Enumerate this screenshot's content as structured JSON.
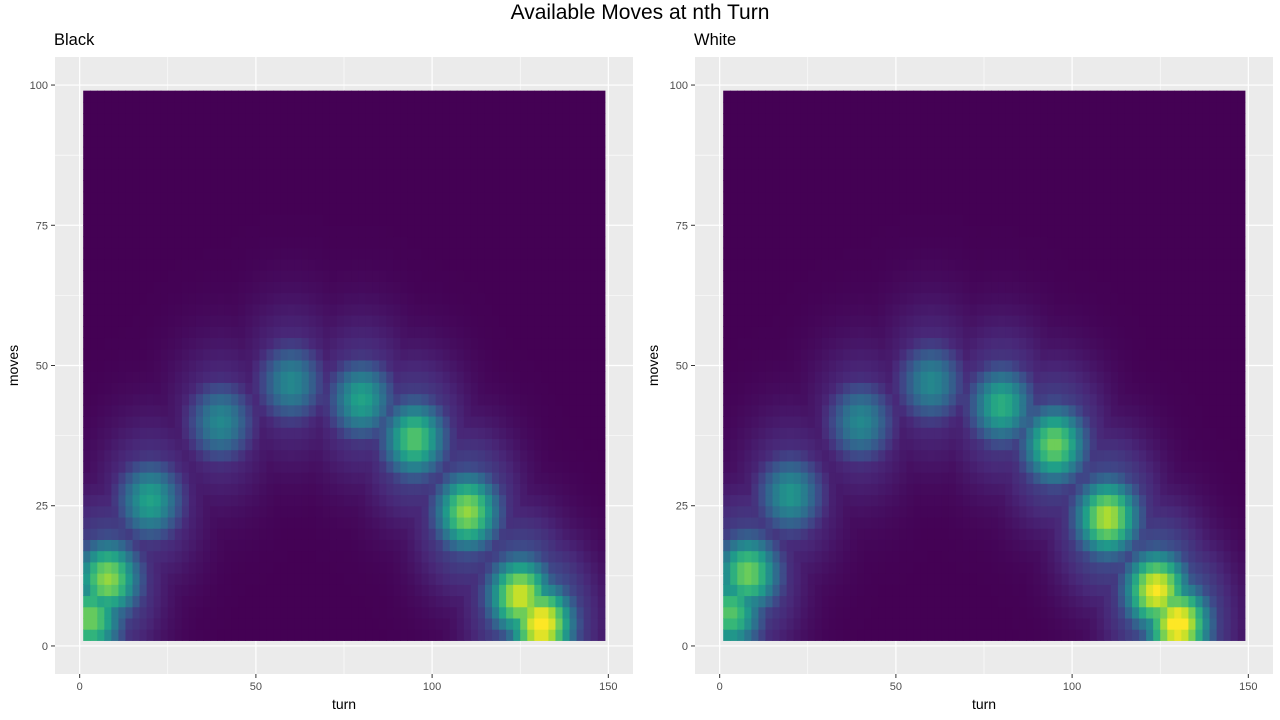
{
  "figure": {
    "title": "Available Moves at nth Turn"
  },
  "chart_data": [
    {
      "type": "heatmap",
      "title": "Black",
      "xlabel": "turn",
      "ylabel": "moves",
      "xlim": [
        -7,
        157
      ],
      "ylim": [
        -5,
        105
      ],
      "x_ticks": [
        0,
        50,
        100,
        150
      ],
      "y_ticks": [
        0,
        25,
        50,
        75,
        100
      ],
      "x_tick_labels": [
        "0",
        "50",
        "100",
        "150"
      ],
      "y_tick_labels": [
        "0",
        "25",
        "50",
        "75",
        "100"
      ],
      "x_range": [
        1,
        149
      ],
      "y_range": [
        1,
        99
      ],
      "grid": true,
      "colormap": "viridis",
      "density_peaks": [
        {
          "turn": 3,
          "moves": 5,
          "level": 0.75
        },
        {
          "turn": 8,
          "moves": 12,
          "level": 0.8
        },
        {
          "turn": 20,
          "moves": 26,
          "level": 0.55
        },
        {
          "turn": 40,
          "moves": 40,
          "level": 0.45
        },
        {
          "turn": 60,
          "moves": 47,
          "level": 0.45
        },
        {
          "turn": 80,
          "moves": 44,
          "level": 0.55
        },
        {
          "turn": 95,
          "moves": 37,
          "level": 0.7
        },
        {
          "turn": 110,
          "moves": 24,
          "level": 0.8
        },
        {
          "turn": 125,
          "moves": 9,
          "level": 0.9
        },
        {
          "turn": 131,
          "moves": 4,
          "level": 1.0
        }
      ]
    },
    {
      "type": "heatmap",
      "title": "White",
      "xlabel": "turn",
      "ylabel": "moves",
      "xlim": [
        -7,
        157
      ],
      "ylim": [
        -5,
        105
      ],
      "x_ticks": [
        0,
        50,
        100,
        150
      ],
      "y_ticks": [
        0,
        25,
        50,
        75,
        100
      ],
      "x_tick_labels": [
        "0",
        "50",
        "100",
        "150"
      ],
      "y_tick_labels": [
        "0",
        "25",
        "50",
        "75",
        "100"
      ],
      "x_range": [
        1,
        149
      ],
      "y_range": [
        1,
        99
      ],
      "grid": true,
      "colormap": "viridis",
      "density_peaks": [
        {
          "turn": 3,
          "moves": 6,
          "level": 0.7
        },
        {
          "turn": 8,
          "moves": 13,
          "level": 0.75
        },
        {
          "turn": 20,
          "moves": 27,
          "level": 0.5
        },
        {
          "turn": 40,
          "moves": 40,
          "level": 0.45
        },
        {
          "turn": 60,
          "moves": 47,
          "level": 0.45
        },
        {
          "turn": 80,
          "moves": 43,
          "level": 0.6
        },
        {
          "turn": 95,
          "moves": 36,
          "level": 0.75
        },
        {
          "turn": 110,
          "moves": 23,
          "level": 0.85
        },
        {
          "turn": 124,
          "moves": 10,
          "level": 0.95
        },
        {
          "turn": 130,
          "moves": 4,
          "level": 1.0
        }
      ]
    }
  ]
}
